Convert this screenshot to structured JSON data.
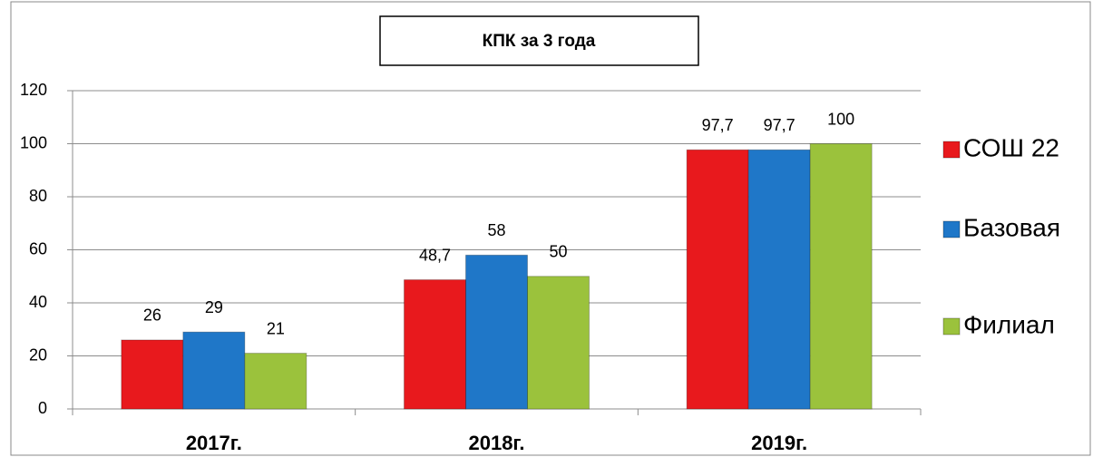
{
  "chart_data": {
    "type": "bar",
    "title": "КПК за 3 года",
    "categories": [
      "2017г.",
      "2018г.",
      "2019г."
    ],
    "series": [
      {
        "name": "СОШ 22",
        "color": "#e8191d",
        "values": [
          26,
          48.7,
          97.7
        ],
        "value_labels": [
          "26",
          "48,7",
          "97,7"
        ]
      },
      {
        "name": "Базовая",
        "color": "#1f77c8",
        "values": [
          29,
          58,
          97.7
        ],
        "value_labels": [
          "29",
          "58",
          "97,7"
        ]
      },
      {
        "name": "Филиал",
        "color": "#9bc23c",
        "values": [
          21,
          50,
          100
        ],
        "value_labels": [
          "21",
          "50",
          "100"
        ]
      }
    ],
    "ylim": [
      0,
      120
    ],
    "yticks": [
      0,
      20,
      40,
      60,
      80,
      100,
      120
    ],
    "grid": true,
    "legend": "right"
  }
}
